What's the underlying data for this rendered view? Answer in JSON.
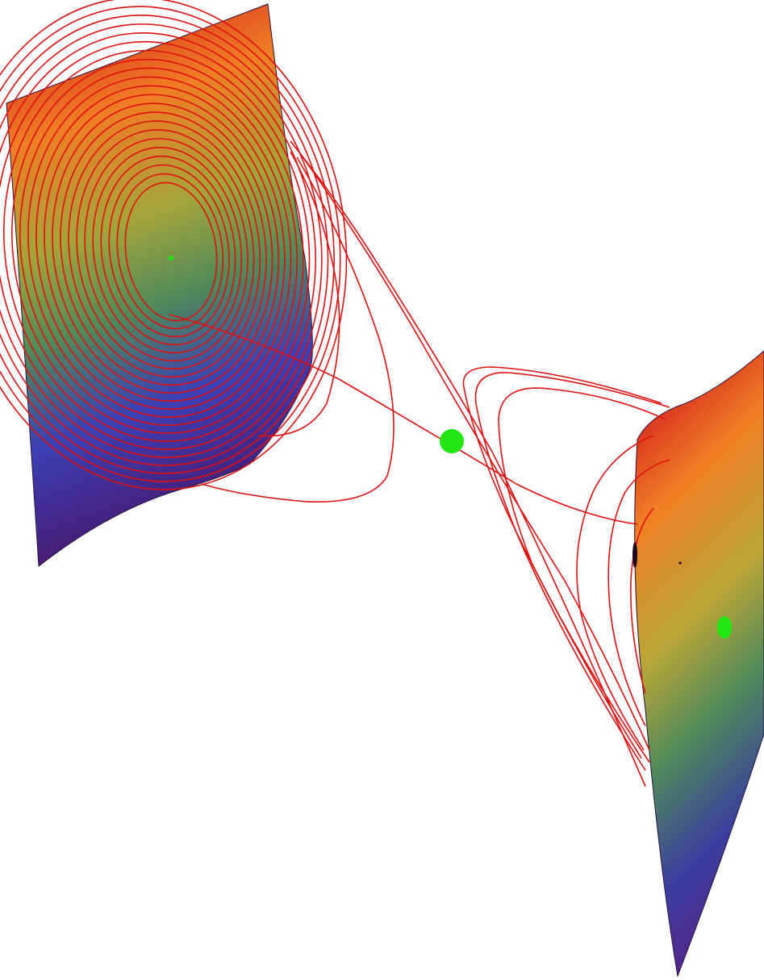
{
  "colors": {
    "background": "#ffffff",
    "trajectory": "#e01010",
    "equilibrium": "#22e612",
    "surface_gradient": [
      "#d41f1f",
      "#f27a22",
      "#b9a636",
      "#4f8a5a",
      "#3b3fb0",
      "#5a1f86",
      "#4a1466"
    ]
  },
  "surfaces": [
    "left-manifold-sheet",
    "right-manifold-sheet"
  ],
  "equilibria": [
    "left-focus-point",
    "saddle-point",
    "right-focus-point"
  ]
}
